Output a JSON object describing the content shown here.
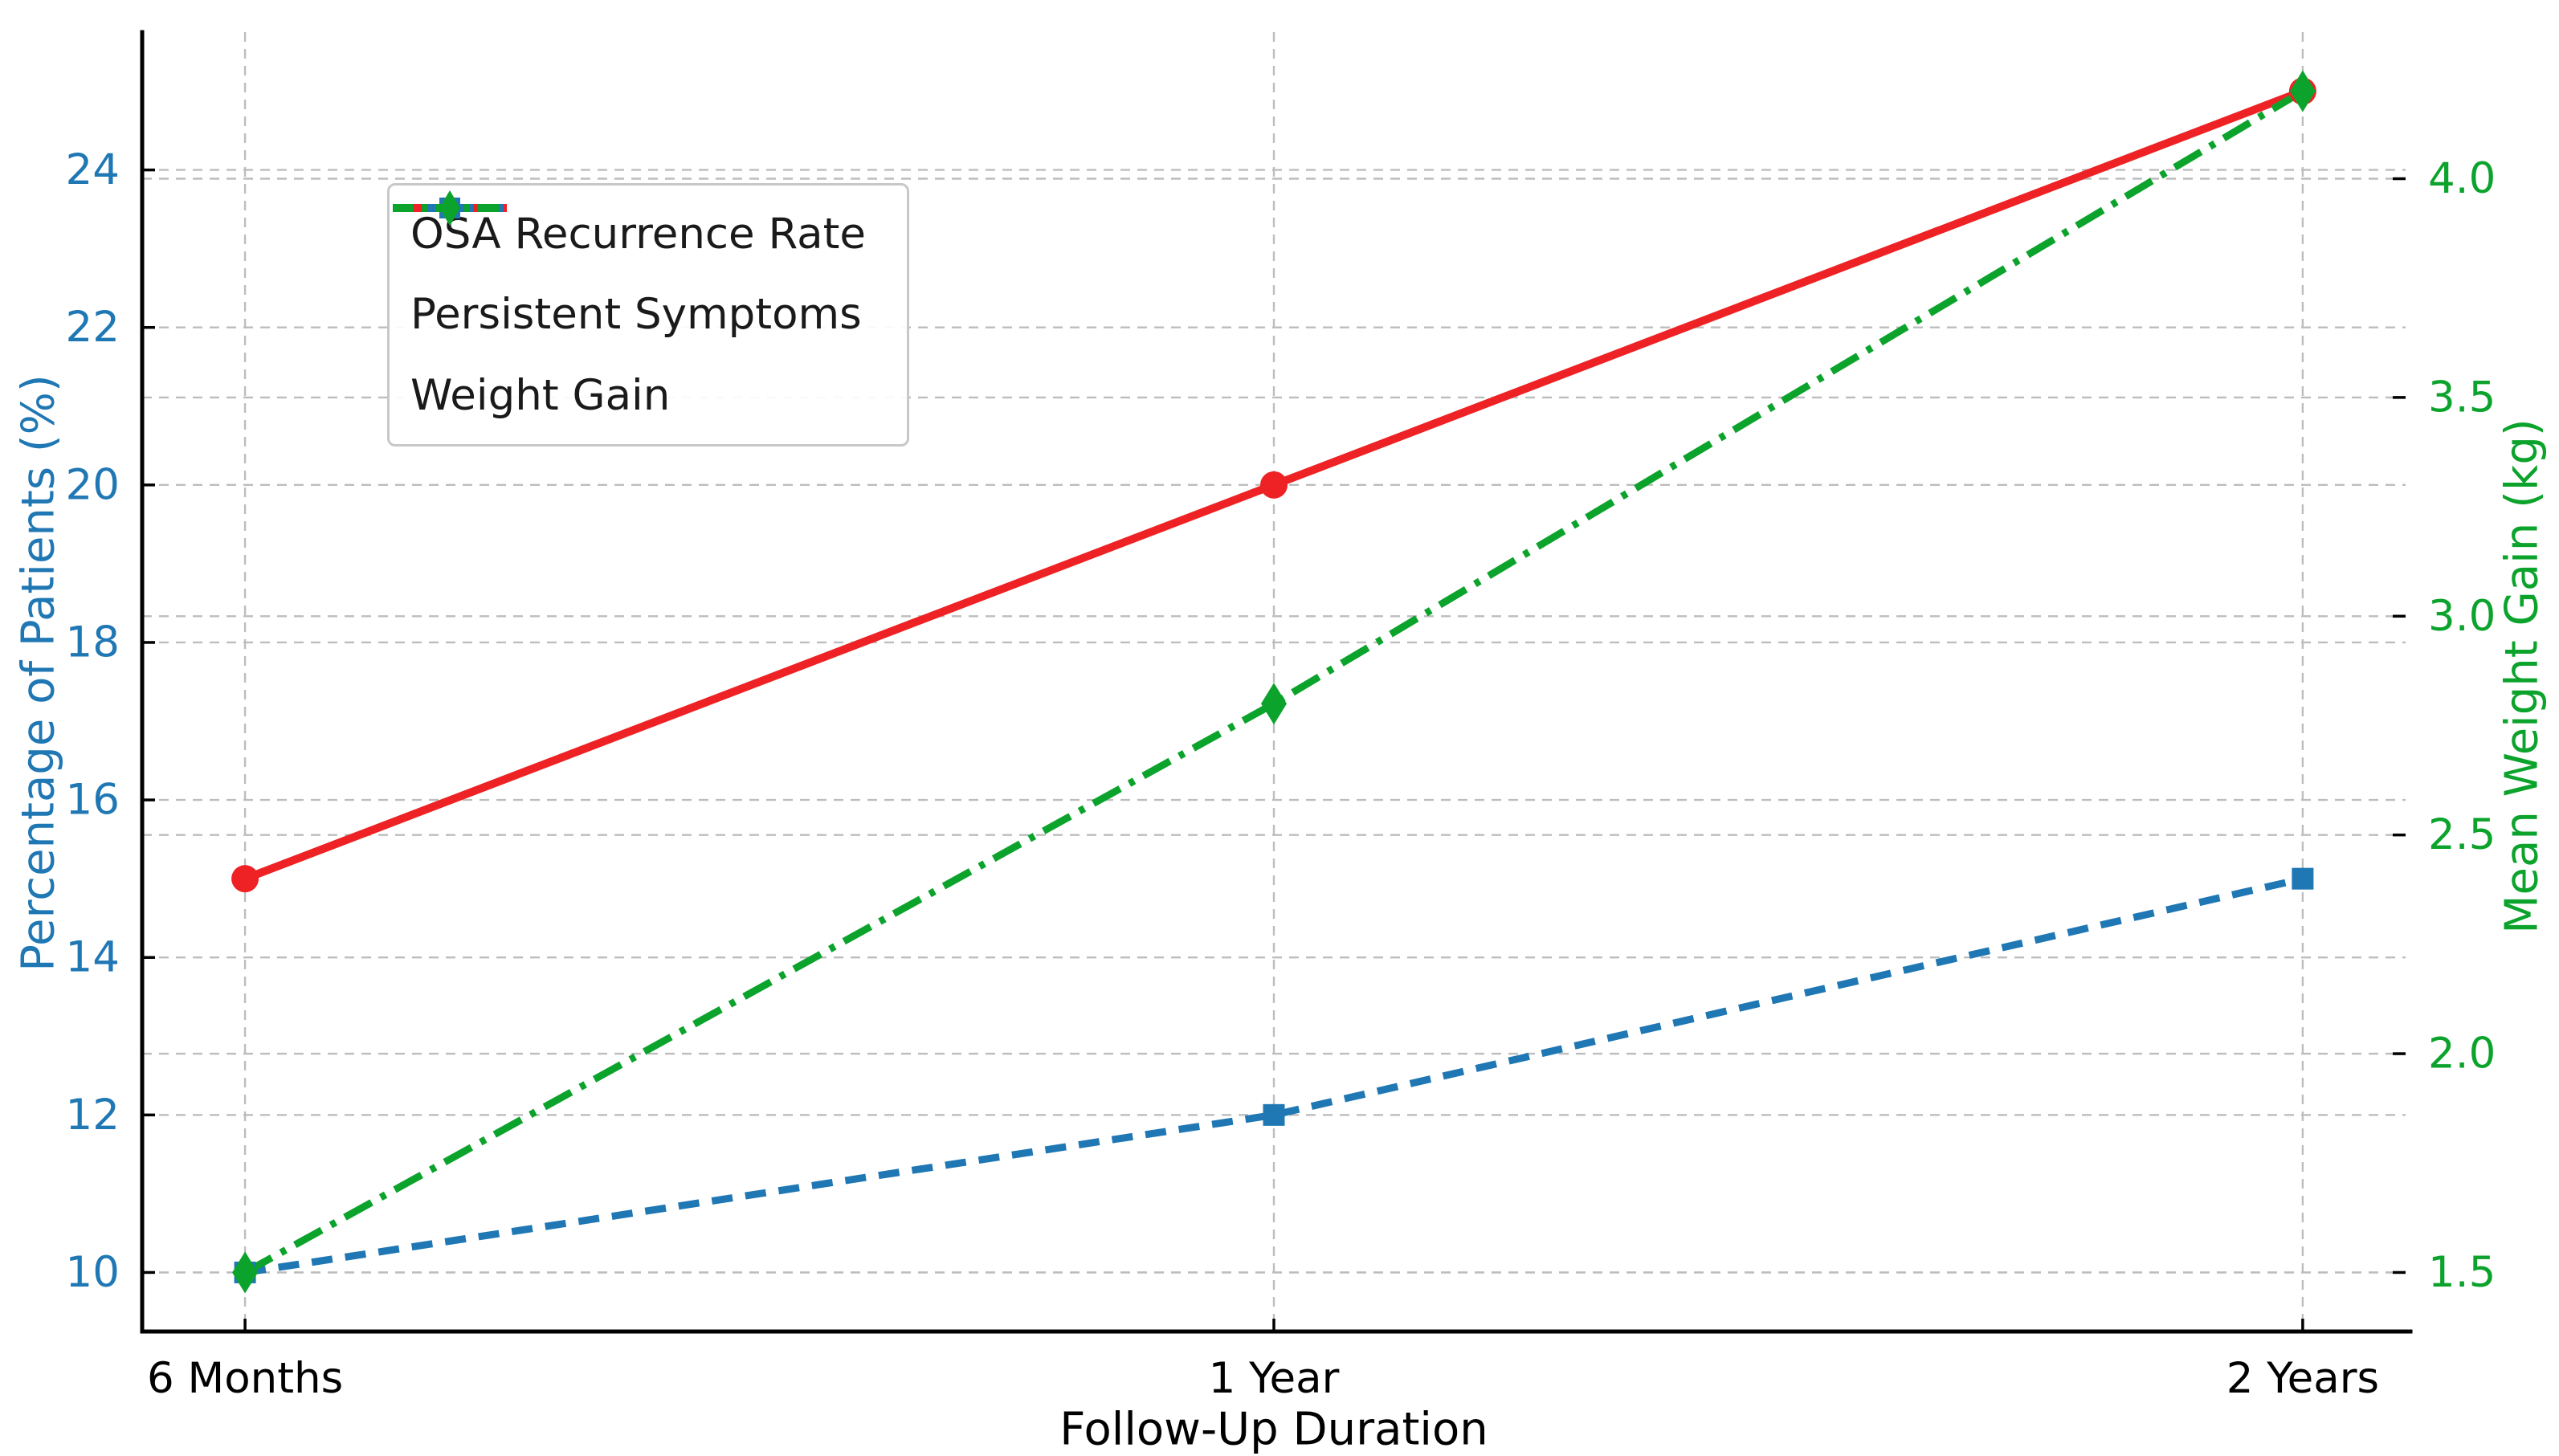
{
  "figure": {
    "background": "#ffffff",
    "grid_color": "#bdbdbd",
    "spine_color": "#000000",
    "x_tick_label_color": "#000000",
    "legend_text_color": "#1a1a1a",
    "legend_border_color": "#c8c8c8"
  },
  "chart_data": {
    "type": "line",
    "title": "",
    "categories": [
      "6 Months",
      "1 Year",
      "2 Years"
    ],
    "xlabel": "Follow-Up Duration",
    "grid": true,
    "legend_position": "upper left",
    "axes": {
      "left": {
        "label": "Percentage of Patients (%)",
        "color": "#1f77b4",
        "ticks": [
          "10",
          "12",
          "14",
          "16",
          "18",
          "20",
          "22",
          "24"
        ],
        "lim": [
          9.25,
          25.75
        ]
      },
      "right": {
        "label": "Mean Weight Gain (kg)",
        "color": "#0ca32c",
        "ticks": [
          "1.5",
          "2.0",
          "2.5",
          "3.0",
          "3.5",
          "4.0"
        ],
        "lim": [
          1.365,
          4.335
        ]
      }
    },
    "series": [
      {
        "name": "OSA Recurrence Rate",
        "axis": "left",
        "values": [
          15,
          20,
          25
        ],
        "color": "#ee2224",
        "linestyle": "solid",
        "marker": "circle"
      },
      {
        "name": "Persistent Symptoms",
        "axis": "left",
        "values": [
          10,
          12,
          15
        ],
        "color": "#1f77b4",
        "linestyle": "dashed",
        "marker": "square"
      },
      {
        "name": "Weight Gain",
        "axis": "right",
        "values": [
          1.5,
          2.8,
          4.2
        ],
        "color": "#0ca32c",
        "linestyle": "dashdot",
        "marker": "thin-diamond"
      }
    ]
  }
}
